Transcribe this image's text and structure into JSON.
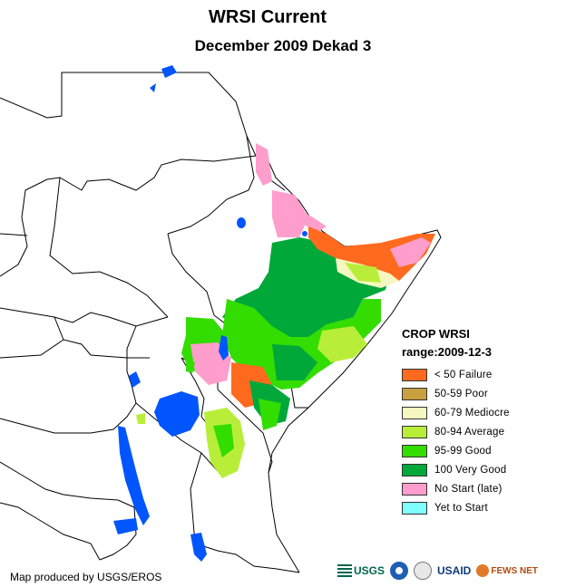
{
  "header": {
    "title": "WRSI Current",
    "subtitle": "December 2009 Dekad 3"
  },
  "legend": {
    "title": "CROP WRSI",
    "range": "range:2009-12-3",
    "items": [
      {
        "label": "< 50  Failure",
        "color": "#ff6a1f"
      },
      {
        "label": "50-59 Poor",
        "color": "#c9a040"
      },
      {
        "label": "60-79 Mediocre",
        "color": "#f4f8c0"
      },
      {
        "label": "80-94 Average",
        "color": "#b8ee3a"
      },
      {
        "label": "95-99 Good",
        "color": "#33dd00"
      },
      {
        "label": "100 Very Good",
        "color": "#00a83a"
      },
      {
        "label": "No Start (late)",
        "color": "#ff9dcc"
      },
      {
        "label": "Yet to Start",
        "color": "#80ffff"
      }
    ]
  },
  "footer": {
    "credit": "Map produced by USGS/EROS",
    "logos": {
      "usgs": "USGS",
      "usaid": "USAID",
      "fews": "FEWS NET"
    }
  },
  "colors": {
    "water": "#0055ff",
    "border": "#000000"
  }
}
